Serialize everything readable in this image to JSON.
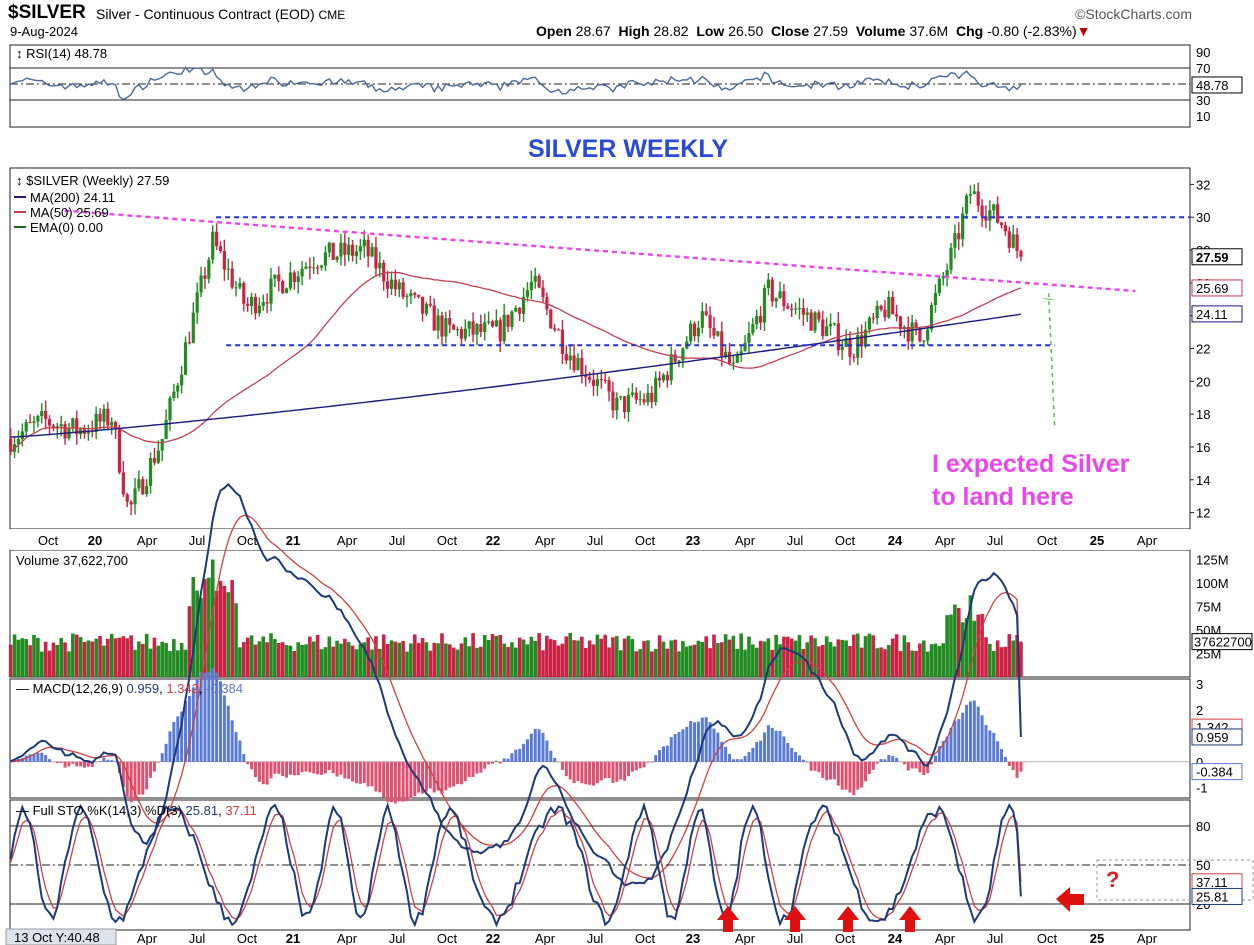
{
  "header": {
    "symbol": "$SILVER",
    "description": "Silver - Continuous Contract (EOD)",
    "exchange": "CME",
    "date": "9-Aug-2024",
    "brand": "©StockCharts.com",
    "open_label": "Open",
    "open": "28.67",
    "high_label": "High",
    "high": "28.82",
    "low_label": "Low",
    "low": "26.50",
    "close_label": "Close",
    "close": "27.59",
    "volume_label": "Volume",
    "volume": "37.6M",
    "chg_label": "Chg",
    "chg": "-0.80 (-2.83%)"
  },
  "colors": {
    "up": "#228b22",
    "down": "#cc2244",
    "ma200": "#1a1a80",
    "ma50": "#c04050",
    "pink": "#ee44ee",
    "blue_line": "#1e32d8",
    "macd": "#1c3a78",
    "signal": "#d04040"
  },
  "annotations": {
    "title": "SILVER WEEKLY",
    "note_line1": "I expected Silver",
    "note_line2": "to land here",
    "question": "?"
  },
  "panels": {
    "rsi": {
      "legend": "RSI(14) 48.78",
      "ticks": [
        "90",
        "70",
        "50",
        "30",
        "10"
      ],
      "tag": "48.78"
    },
    "price": {
      "legend": "$SILVER (Weekly) 27.59",
      "ma200": "MA(200) 24.11",
      "ma50": "MA(50) 25.69",
      "ema": "EMA(0) 0.00",
      "ticks": [
        "32",
        "30",
        "28",
        "26",
        "24",
        "22",
        "20",
        "18",
        "16",
        "14",
        "12"
      ],
      "tag_close": "27.59",
      "tag_ma50": "25.69",
      "tag_ma200": "24.11"
    },
    "volume": {
      "legend": "Volume 37,622,700",
      "ticks": [
        "125M",
        "100M",
        "75M",
        "50M",
        "25M"
      ],
      "tag": "37622700"
    },
    "macd": {
      "legend_prefix": "MACD(12,26,9)",
      "v1": "0.959",
      "v2": "1.342",
      "v3": "-0.384",
      "ticks": [
        "3",
        "2",
        "1",
        "0",
        "-1"
      ],
      "tag1": "1.342",
      "tag2": "0.959",
      "tag3": "-0.384"
    },
    "sto": {
      "legend_prefix": "Full STO %K(14,3) %D(3)",
      "v1": "25.81",
      "v2": "37.11",
      "ticks": [
        "80",
        "50",
        "20"
      ],
      "tag1": "37.11",
      "tag2": "25.81"
    }
  },
  "x_axis": {
    "labels": [
      "Oct",
      "20",
      "Apr",
      "Jul",
      "Oct",
      "21",
      "Apr",
      "Jul",
      "Oct",
      "22",
      "Apr",
      "Jul",
      "Oct",
      "23",
      "Apr",
      "Jul",
      "Oct",
      "24",
      "Apr",
      "Jul",
      "Oct",
      "25",
      "Apr"
    ],
    "bottom_labels": [
      "Apr",
      "Jul",
      "Oct",
      "21",
      "Apr",
      "Jul",
      "Oct",
      "22",
      "Apr",
      "Jul",
      "Oct",
      "23",
      "Apr",
      "Jul",
      "Oct",
      "24",
      "Apr",
      "Jul",
      "Oct",
      "25",
      "Apr"
    ],
    "cursor_readout": "13 Oct Y:40.48"
  },
  "chart_data": {
    "type": "candlestick",
    "title": "",
    "x_unit": "weekly",
    "ylim": [
      11,
      33
    ],
    "x_range": [
      "2019-08",
      "2025-05"
    ],
    "price_path": [
      {
        "date": "2019-08",
        "close": 16.5
      },
      {
        "date": "2019-10",
        "close": 17.6
      },
      {
        "date": "2019-12",
        "close": 17.0
      },
      {
        "date": "2020-02",
        "close": 17.8
      },
      {
        "date": "2020-03",
        "close": 12.0
      },
      {
        "date": "2020-05",
        "close": 16.5
      },
      {
        "date": "2020-07",
        "close": 24.5
      },
      {
        "date": "2020-08",
        "close": 28.5
      },
      {
        "date": "2020-10",
        "close": 24.5
      },
      {
        "date": "2021-02",
        "close": 27.5
      },
      {
        "date": "2021-05",
        "close": 28.0
      },
      {
        "date": "2021-07",
        "close": 25.5
      },
      {
        "date": "2021-10",
        "close": 23.0
      },
      {
        "date": "2022-01",
        "close": 23.0
      },
      {
        "date": "2022-03",
        "close": 26.0
      },
      {
        "date": "2022-05",
        "close": 22.0
      },
      {
        "date": "2022-08",
        "close": 18.5
      },
      {
        "date": "2022-10",
        "close": 19.0
      },
      {
        "date": "2023-01",
        "close": 24.0
      },
      {
        "date": "2023-03",
        "close": 20.5
      },
      {
        "date": "2023-05",
        "close": 25.5
      },
      {
        "date": "2023-08",
        "close": 23.5
      },
      {
        "date": "2023-10",
        "close": 22.0
      },
      {
        "date": "2023-12",
        "close": 24.5
      },
      {
        "date": "2024-02",
        "close": 22.5
      },
      {
        "date": "2024-04",
        "close": 28.0
      },
      {
        "date": "2024-05",
        "close": 31.5
      },
      {
        "date": "2024-07",
        "close": 29.5
      },
      {
        "date": "2024-08",
        "close": 27.59
      }
    ],
    "ma200_end": 24.11,
    "ma50_end": 25.69,
    "support_level": 22.2,
    "resistance_level": 30.0,
    "volume_last": 37622700,
    "rsi_last": 48.78,
    "macd": {
      "macd": 0.959,
      "signal": 1.342,
      "histogram": -0.384
    },
    "stochastic": {
      "k": 25.81,
      "d": 37.11
    }
  }
}
